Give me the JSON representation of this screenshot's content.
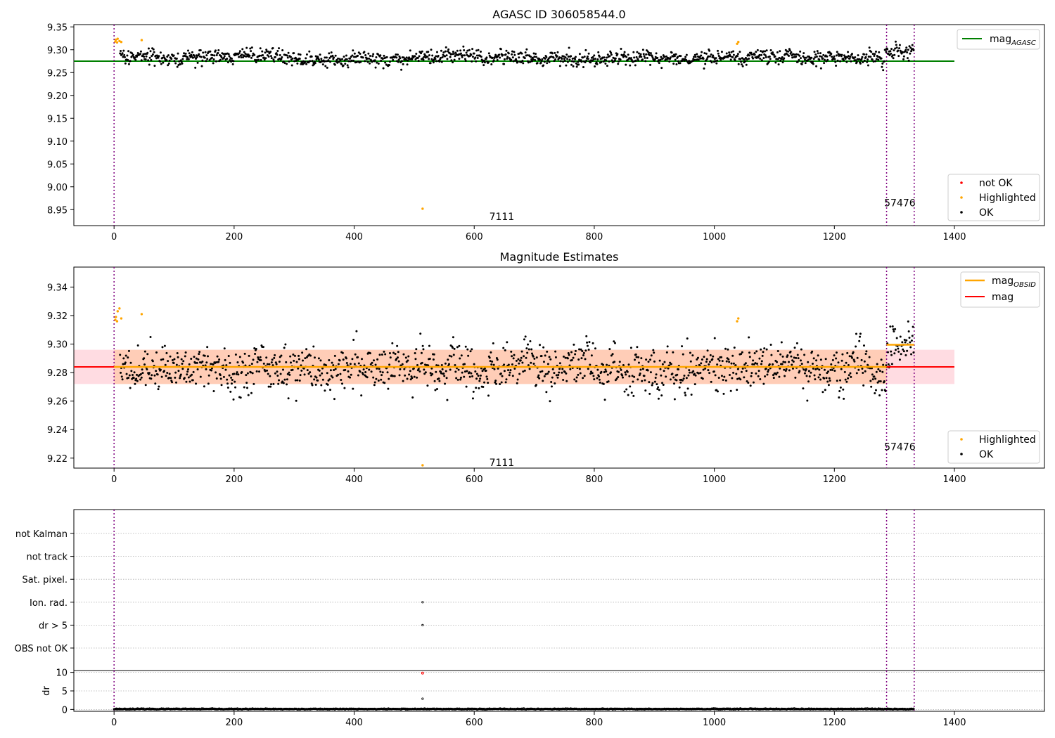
{
  "chart_data": [
    {
      "type": "scatter",
      "title": "AGASC ID 306058544.0",
      "xlim": [
        -67,
        1550
      ],
      "ylim": [
        8.915,
        9.355
      ],
      "xticks": [
        0,
        200,
        400,
        600,
        800,
        1000,
        1200,
        1400
      ],
      "yticks": [
        8.95,
        9.0,
        9.05,
        9.1,
        9.15,
        9.2,
        9.25,
        9.3,
        9.35
      ],
      "ytick_labels": [
        "8.95",
        "9.00",
        "9.05",
        "9.10",
        "9.15",
        "9.20",
        "9.25",
        "9.30",
        "9.35"
      ],
      "grid": false,
      "vlines": [
        0,
        1287,
        1333
      ],
      "annotations": [
        {
          "text": "7111",
          "x": 625,
          "y": 8.935
        },
        {
          "text": "57476",
          "x": 1283,
          "y": 8.965
        }
      ],
      "hlines": [
        {
          "y": 9.275,
          "x": [
            -67,
            1400
          ],
          "color": "#008000",
          "label": "mag",
          "label_sub": "AGASC"
        }
      ],
      "series": [
        {
          "name": "not OK",
          "color": "#ff0000",
          "points": []
        },
        {
          "name": "Highlighted",
          "color": "#ffa500",
          "points": [
            [
              2,
              9.318
            ],
            [
              3,
              9.322
            ],
            [
              5,
              9.316
            ],
            [
              6,
              9.324
            ],
            [
              9,
              9.319
            ],
            [
              12,
              9.317
            ],
            [
              46,
              9.321
            ],
            [
              514,
              8.952
            ],
            [
              1038,
              9.313
            ],
            [
              1040,
              9.317
            ]
          ]
        },
        {
          "name": "OK",
          "color": "#000000",
          "sample": {
            "x_start": 10,
            "x_end": 1332,
            "n": 1330,
            "center": 9.283,
            "noise": 0.009
          }
        }
      ],
      "legend_upper": "top-right",
      "legend_lower": "bottom-right"
    },
    {
      "type": "scatter",
      "title": "Magnitude Estimates",
      "xlim": [
        -67,
        1550
      ],
      "ylim": [
        9.213,
        9.354
      ],
      "xticks": [
        0,
        200,
        400,
        600,
        800,
        1000,
        1200,
        1400
      ],
      "yticks": [
        9.22,
        9.24,
        9.26,
        9.28,
        9.3,
        9.32,
        9.34
      ],
      "ytick_labels": [
        "9.22",
        "9.24",
        "9.26",
        "9.28",
        "9.30",
        "9.32",
        "9.34"
      ],
      "grid": false,
      "vlines": [
        0,
        1287,
        1333
      ],
      "annotations": [
        {
          "text": "7111",
          "x": 625,
          "y": 9.217
        },
        {
          "text": "57476",
          "x": 1283,
          "y": 9.228
        }
      ],
      "bands": [
        {
          "x": [
            -67,
            1400
          ],
          "y": [
            9.272,
            9.296
          ],
          "color": "#ffd0d8"
        },
        {
          "x": [
            0,
            1287
          ],
          "y": [
            9.272,
            9.296
          ],
          "color": "#ffc8a8"
        }
      ],
      "hlines": [
        {
          "y": 9.284,
          "x": [
            -67,
            1400
          ],
          "color": "#ff0000",
          "label": "mag"
        },
        {
          "y": 9.284,
          "x": [
            0,
            1287
          ],
          "color": "#ffa500"
        },
        {
          "y": 9.2995,
          "x": [
            1287,
            1333
          ],
          "color": "#ffa500",
          "label": "mag",
          "label_sub": "OBSID"
        }
      ],
      "series": [
        {
          "name": "Highlighted",
          "color": "#ffa500",
          "points": [
            [
              2,
              9.317
            ],
            [
              3,
              9.319
            ],
            [
              5,
              9.316
            ],
            [
              6,
              9.323
            ],
            [
              9,
              9.325
            ],
            [
              12,
              9.318
            ],
            [
              46,
              9.321
            ],
            [
              514,
              9.215
            ],
            [
              1038,
              9.316
            ],
            [
              1040,
              9.318
            ]
          ]
        },
        {
          "name": "OK",
          "color": "#000000",
          "sample": {
            "x_start": 10,
            "x_end": 1332,
            "n": 1330,
            "center": 9.283,
            "noise": 0.009
          }
        }
      ],
      "legend_upper": "top-right",
      "legend_lower": "bottom-right"
    },
    {
      "type": "scatter",
      "xlim": [
        -67,
        1550
      ],
      "xticks": [
        0,
        200,
        400,
        600,
        800,
        1000,
        1200,
        1400
      ],
      "vlines": [
        0,
        1287,
        1333
      ],
      "flag_rows": [
        "not Kalman",
        "not track",
        "Sat. pixel.",
        "Ion. rad.",
        "dr > 5",
        "OBS not OK"
      ],
      "flag_points": [
        {
          "row": "Ion. rad.",
          "x": 514
        },
        {
          "row": "dr > 5",
          "x": 514
        }
      ],
      "dr_panel": {
        "ylabel": "dr",
        "ylim": [
          -0.5,
          10.5
        ],
        "yticks": [
          0,
          5,
          10
        ],
        "points_notok": [
          [
            514,
            9.8
          ]
        ],
        "points_ok": [
          [
            514,
            2.9
          ]
        ],
        "baseline": {
          "x_start": 0,
          "x_end": 1332,
          "n": 1330,
          "center": 0.12,
          "noise": 0.06
        }
      }
    }
  ]
}
